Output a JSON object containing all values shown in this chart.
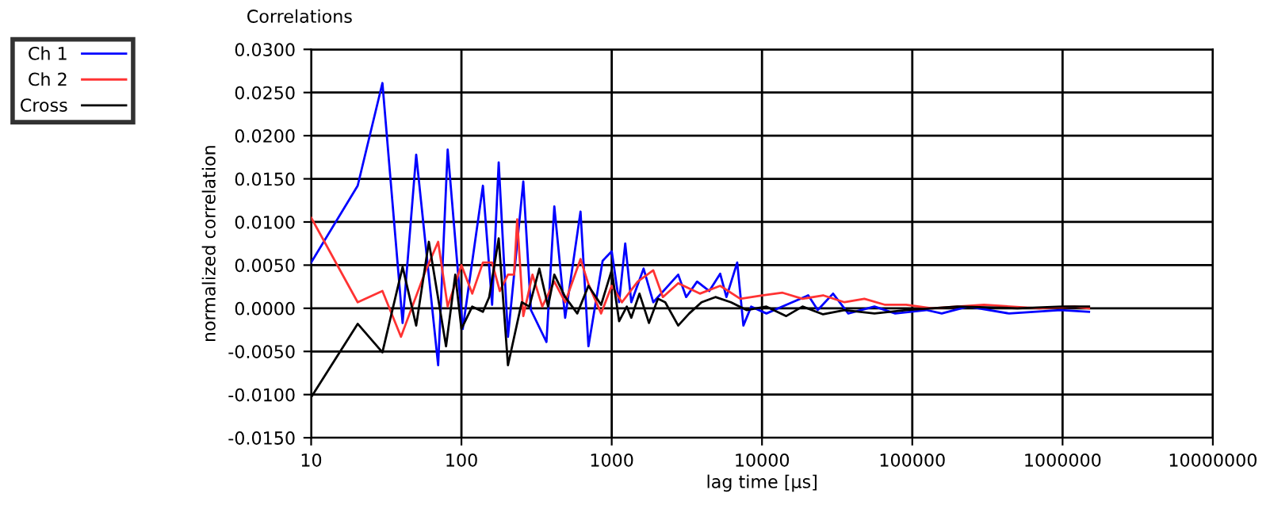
{
  "chart_data": {
    "type": "line",
    "title": "Correlations",
    "xlabel": "lag time [µs]",
    "ylabel": "normalized correlation",
    "log": "x",
    "grid": true,
    "legend": "top left",
    "line_style": "solid",
    "marker": "none",
    "xlim": [
      10,
      10000000
    ],
    "xticks": [
      10,
      100,
      1000,
      10000,
      100000,
      1000000,
      10000000
    ],
    "ylim": [
      -0.015,
      0.03
    ],
    "yticks": [
      {
        "value": -0.015,
        "label": "-0.0150"
      },
      {
        "value": -0.01,
        "label": "-0.0100"
      },
      {
        "value": -0.005,
        "label": "-0.0050"
      },
      {
        "value": 0,
        "label": "0.0000"
      },
      {
        "value": 0.005,
        "label": "0.0050"
      },
      {
        "value": 0.01,
        "label": "0.0100"
      },
      {
        "value": 0.015,
        "label": "0.0150"
      },
      {
        "value": 0.02,
        "label": "0.0200"
      },
      {
        "value": 0.025,
        "label": "0.0250"
      },
      {
        "value": 0.03,
        "label": "0.0300"
      }
    ],
    "series": [
      {
        "name": "Ch 1",
        "color": "#0000ff",
        "x": [
          10,
          20.4,
          29.8,
          40.6,
          50,
          70,
          81,
          102,
          139,
          160,
          177,
          204,
          258,
          290,
          368,
          415,
          490,
          620,
          700,
          870,
          1000,
          1120,
          1230,
          1350,
          1630,
          1890,
          2770,
          3130,
          3700,
          4460,
          5270,
          5800,
          6840,
          7520,
          8470,
          10700,
          14500,
          20300,
          23500,
          29700,
          37500,
          56000,
          77000,
          124000,
          157000,
          235000,
          440000,
          970000,
          1500000
        ],
        "values": [
          0.0053,
          0.0142,
          0.0261,
          -0.0017,
          0.0178,
          -0.0066,
          0.0184,
          -0.0024,
          0.0142,
          0.0004,
          0.0169,
          -0.0033,
          0.0147,
          -0.0002,
          -0.0039,
          0.0118,
          -0.0011,
          0.0112,
          -0.0044,
          0.0055,
          0.0066,
          0.0007,
          0.0075,
          0.0007,
          0.0046,
          0.0007,
          0.0039,
          0.0013,
          0.0031,
          0.002,
          0.004,
          0.0013,
          0.0053,
          -0.002,
          0.0002,
          -0.0006,
          0.0004,
          0.0015,
          -0.0002,
          0.0017,
          -0.0006,
          0.0002,
          -0.0006,
          -0.0002,
          -0.0006,
          0.0002,
          -0.0006,
          -0.0002,
          -0.0004
        ]
      },
      {
        "name": "Ch 2",
        "color": "#ff3333",
        "x": [
          10,
          20.4,
          29.8,
          39.6,
          57.9,
          70,
          81,
          100,
          118,
          139,
          160,
          180,
          204,
          224,
          235,
          258,
          297,
          345,
          415,
          490,
          620,
          700,
          850,
          1000,
          1170,
          1490,
          1890,
          2190,
          2770,
          3860,
          5270,
          7170,
          10000,
          13700,
          18600,
          25500,
          35400,
          48000,
          66000,
          91000,
          135000,
          300000,
          700000,
          1200000,
          1500000
        ],
        "values": [
          0.0105,
          0.0007,
          0.002,
          -0.0033,
          0.0044,
          0.0077,
          0.0002,
          0.005,
          0.0017,
          0.0053,
          0.0053,
          0.002,
          0.0039,
          0.0039,
          0.0103,
          -0.0009,
          0.0039,
          0.0002,
          0.0031,
          0.0007,
          0.0057,
          0.0028,
          -0.0006,
          0.0026,
          0.0007,
          0.0031,
          0.0044,
          0.0013,
          0.0029,
          0.0017,
          0.0026,
          0.0011,
          0.0015,
          0.0018,
          0.0011,
          0.0015,
          0.0007,
          0.0011,
          0.0004,
          0.0004,
          0,
          0.0004,
          0,
          0.0002,
          0
        ]
      },
      {
        "name": "Cross",
        "color": "#000000",
        "x": [
          10,
          20.4,
          29.8,
          40.6,
          50,
          60.7,
          79,
          91,
          100,
          118,
          139,
          153,
          177,
          204,
          252,
          283,
          330,
          377,
          415,
          490,
          590,
          700,
          850,
          1000,
          1120,
          1260,
          1350,
          1530,
          1770,
          2030,
          2270,
          2770,
          3280,
          3960,
          4900,
          6210,
          7890,
          10700,
          14500,
          18600,
          25500,
          35400,
          56000,
          91000,
          200000,
          500000,
          1000000,
          1500000
        ],
        "values": [
          -0.0103,
          -0.0018,
          -0.0051,
          0.0048,
          -0.002,
          0.0077,
          -0.0044,
          0.0039,
          -0.0024,
          0.0002,
          -0.0004,
          0.0013,
          0.0081,
          -0.0066,
          0.0007,
          0.0002,
          0.0046,
          0.0002,
          0.0039,
          0.0013,
          -0.0006,
          0.0026,
          0.0004,
          0.0044,
          -0.0015,
          0.0002,
          -0.0011,
          0.0017,
          -0.0017,
          0.0011,
          0.0007,
          -0.002,
          -0.0006,
          0.0007,
          0.0013,
          0.0007,
          -0.0002,
          0.0002,
          -0.0009,
          0.0002,
          -0.0007,
          -0.0002,
          -0.0006,
          -0.0002,
          0.0002,
          0,
          0.0002,
          0.0002
        ]
      }
    ]
  }
}
